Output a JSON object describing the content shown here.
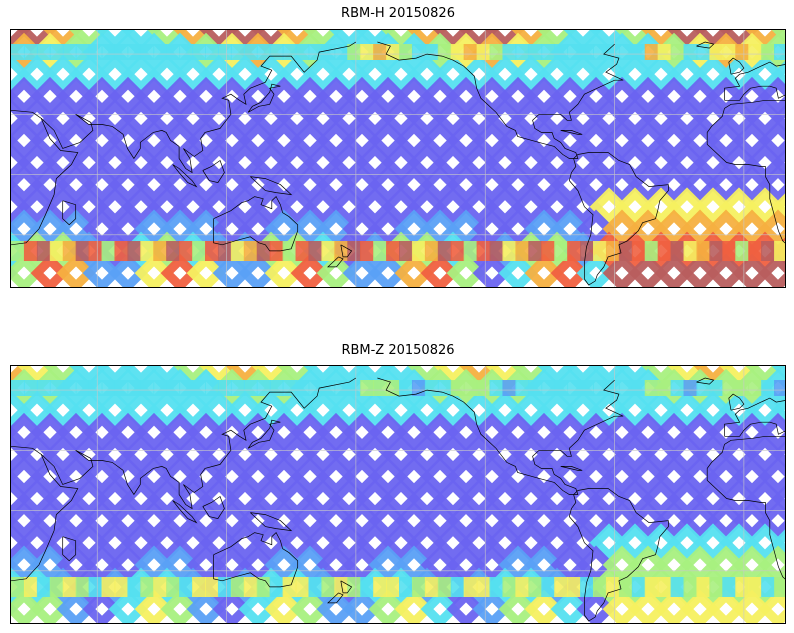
{
  "panels": [
    {
      "title": "RBM-H 20150826",
      "hot_south": 0.95,
      "hot_north": 0.75
    },
    {
      "title": "RBM-Z 20150826",
      "hot_south": 0.55,
      "hot_north": 0.4
    }
  ],
  "colors": {
    "track_low": "#6a64f0",
    "ramp": [
      "#6a64f0",
      "#5aa0f5",
      "#55e0f0",
      "#a8f080",
      "#f5f060",
      "#f5b040",
      "#f06040",
      "#b85e5e"
    ],
    "coastline": "#000000",
    "grid": "#c8c8c8"
  },
  "grid": {
    "meridian_step_deg": 60,
    "parallel_step_deg": 30
  }
}
